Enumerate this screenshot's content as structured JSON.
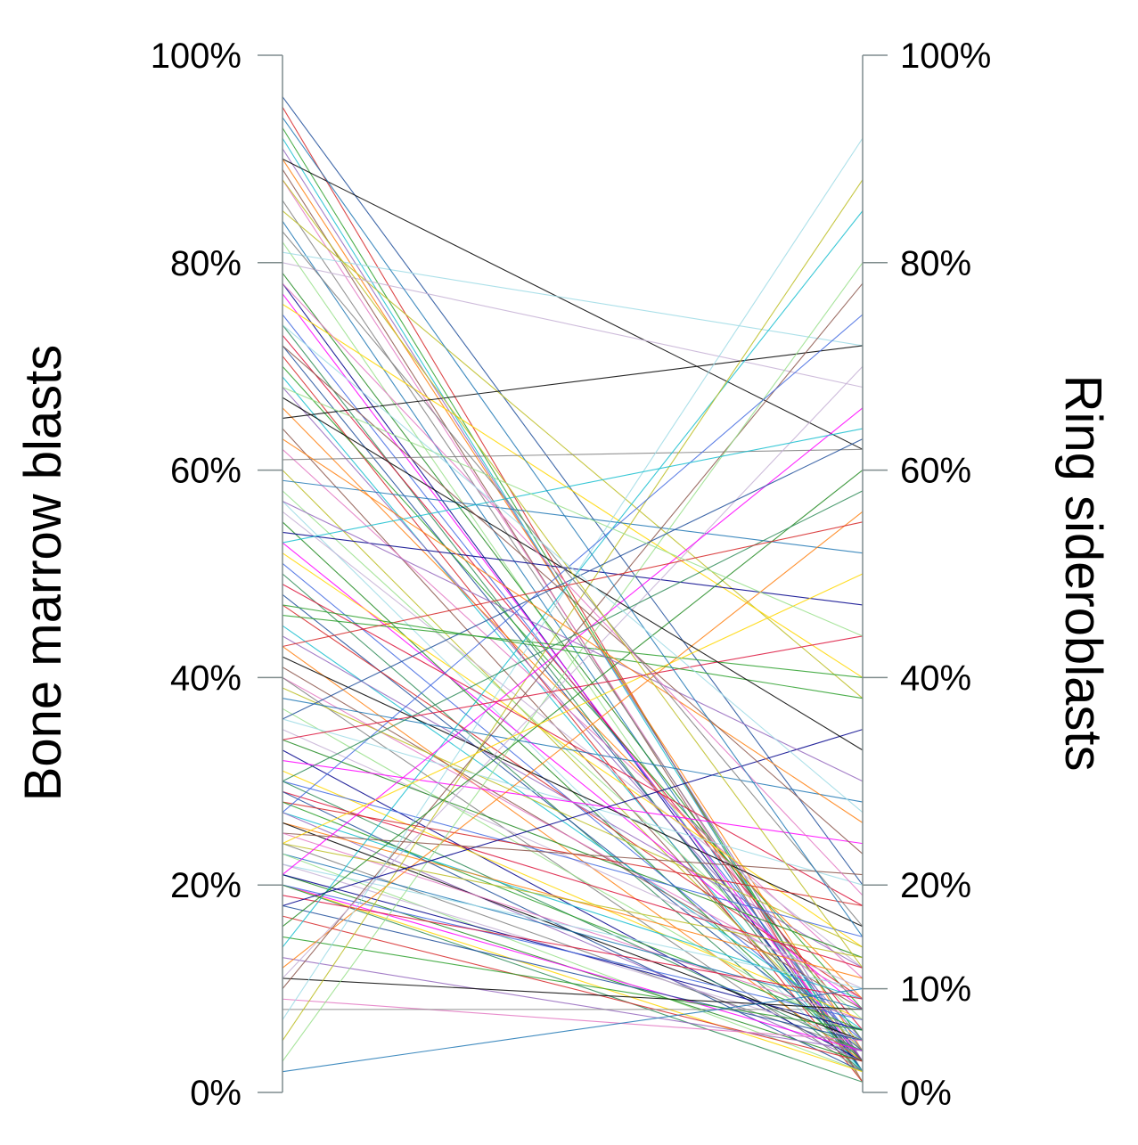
{
  "chart_data": {
    "type": "line",
    "chart_style": "parallel-coordinates",
    "axes": [
      {
        "label": "Bone marrow blasts",
        "side": "left",
        "ylim": [
          0,
          100
        ],
        "ticks": [
          {
            "value": 0,
            "label": "0%"
          },
          {
            "value": 20,
            "label": "20%"
          },
          {
            "value": 40,
            "label": "40%"
          },
          {
            "value": 60,
            "label": "60%"
          },
          {
            "value": 80,
            "label": "80%"
          },
          {
            "value": 100,
            "label": "100%"
          }
        ]
      },
      {
        "label": "Ring sideroblasts",
        "side": "right",
        "ylim": [
          0,
          100
        ],
        "ticks": [
          {
            "value": 0,
            "label": "0%"
          },
          {
            "value": 10,
            "label": "10%"
          },
          {
            "value": 20,
            "label": "20%"
          },
          {
            "value": 40,
            "label": "40%"
          },
          {
            "value": 60,
            "label": "60%"
          },
          {
            "value": 80,
            "label": "80%"
          },
          {
            "value": 100,
            "label": "100%"
          }
        ]
      }
    ],
    "series_colors": [
      "#1f4e9a",
      "#d62728",
      "#2ca02c",
      "#17becf",
      "#9467bd",
      "#ff7f0e",
      "#000000",
      "#8c564b",
      "#e377c2",
      "#7f7f7f",
      "#bcbd22",
      "#1f77b4",
      "#98df8a",
      "#9edae5",
      "#c5b0d5",
      "#228b22",
      "#00008b",
      "#ff00ff",
      "#ffd700",
      "#4169e1",
      "#2e8b57",
      "#dc143c"
    ],
    "series": [
      {
        "values": [
          96,
          20
        ]
      },
      {
        "values": [
          95,
          1
        ]
      },
      {
        "values": [
          93,
          2
        ]
      },
      {
        "values": [
          92,
          2
        ]
      },
      {
        "values": [
          91,
          3
        ]
      },
      {
        "values": [
          90,
          4
        ]
      },
      {
        "values": [
          90,
          62
        ]
      },
      {
        "values": [
          89,
          1
        ]
      },
      {
        "values": [
          88,
          2
        ]
      },
      {
        "values": [
          86,
          3
        ]
      },
      {
        "values": [
          85,
          38
        ]
      },
      {
        "values": [
          84,
          2
        ]
      },
      {
        "values": [
          82,
          1
        ]
      },
      {
        "values": [
          81,
          72
        ]
      },
      {
        "values": [
          80,
          68
        ]
      },
      {
        "values": [
          79,
          5
        ]
      },
      {
        "values": [
          78,
          2
        ]
      },
      {
        "values": [
          77,
          3
        ]
      },
      {
        "values": [
          76,
          40
        ]
      },
      {
        "values": [
          75,
          4
        ]
      },
      {
        "values": [
          74,
          2
        ]
      },
      {
        "values": [
          73,
          6
        ]
      },
      {
        "values": [
          72,
          3
        ]
      },
      {
        "values": [
          71,
          1
        ]
      },
      {
        "values": [
          70,
          8
        ]
      },
      {
        "values": [
          69,
          2
        ]
      },
      {
        "values": [
          68,
          5
        ]
      },
      {
        "values": [
          66,
          9
        ]
      },
      {
        "values": [
          65,
          72
        ]
      },
      {
        "values": [
          64,
          3
        ]
      },
      {
        "values": [
          62,
          11
        ]
      },
      {
        "values": [
          61,
          62
        ]
      },
      {
        "values": [
          60,
          4
        ]
      },
      {
        "values": [
          59,
          52
        ]
      },
      {
        "values": [
          58,
          7
        ]
      },
      {
        "values": [
          57,
          2
        ]
      },
      {
        "values": [
          56,
          12
        ]
      },
      {
        "values": [
          55,
          3
        ]
      },
      {
        "values": [
          54,
          47
        ]
      },
      {
        "values": [
          53,
          8
        ]
      },
      {
        "values": [
          52,
          14
        ]
      },
      {
        "values": [
          51,
          5
        ]
      },
      {
        "values": [
          50,
          2
        ]
      },
      {
        "values": [
          49,
          18
        ]
      },
      {
        "values": [
          48,
          4
        ]
      },
      {
        "values": [
          47,
          9
        ]
      },
      {
        "values": [
          46,
          40
        ]
      },
      {
        "values": [
          45,
          6
        ]
      },
      {
        "values": [
          44,
          12
        ]
      },
      {
        "values": [
          43,
          3
        ]
      },
      {
        "values": [
          42,
          16
        ]
      },
      {
        "values": [
          41,
          8
        ]
      },
      {
        "values": [
          40,
          9
        ]
      },
      {
        "values": [
          40,
          2
        ]
      },
      {
        "values": [
          39,
          14
        ]
      },
      {
        "values": [
          38,
          28
        ]
      },
      {
        "values": [
          37,
          5
        ]
      },
      {
        "values": [
          36,
          20
        ]
      },
      {
        "values": [
          35,
          10
        ]
      },
      {
        "values": [
          34,
          13
        ]
      },
      {
        "values": [
          33,
          3
        ]
      },
      {
        "values": [
          32,
          24
        ]
      },
      {
        "values": [
          31,
          7
        ]
      },
      {
        "values": [
          30,
          15
        ]
      },
      {
        "values": [
          30,
          4
        ]
      },
      {
        "values": [
          29,
          12
        ]
      },
      {
        "values": [
          29,
          2
        ]
      },
      {
        "values": [
          28,
          18
        ]
      },
      {
        "values": [
          28,
          6
        ]
      },
      {
        "values": [
          27,
          9
        ]
      },
      {
        "values": [
          27,
          3
        ]
      },
      {
        "values": [
          26,
          11
        ]
      },
      {
        "values": [
          26,
          5
        ]
      },
      {
        "values": [
          25,
          21
        ]
      },
      {
        "values": [
          25,
          7
        ]
      },
      {
        "values": [
          24,
          4
        ]
      },
      {
        "values": [
          24,
          13
        ]
      },
      {
        "values": [
          23,
          8
        ]
      },
      {
        "values": [
          23,
          2
        ]
      },
      {
        "values": [
          22,
          10
        ]
      },
      {
        "values": [
          22,
          5
        ]
      },
      {
        "values": [
          21,
          3
        ]
      },
      {
        "values": [
          21,
          6
        ]
      },
      {
        "values": [
          20,
          4
        ]
      },
      {
        "values": [
          20,
          2
        ]
      },
      {
        "values": [
          20,
          7
        ]
      },
      {
        "values": [
          20,
          1
        ]
      },
      {
        "values": [
          19,
          9
        ]
      },
      {
        "values": [
          18,
          5
        ]
      },
      {
        "values": [
          17,
          3
        ]
      },
      {
        "values": [
          15,
          6
        ]
      },
      {
        "values": [
          14,
          85
        ]
      },
      {
        "values": [
          13,
          4
        ]
      },
      {
        "values": [
          12,
          56
        ]
      },
      {
        "values": [
          11,
          8
        ]
      },
      {
        "values": [
          10,
          78
        ]
      },
      {
        "values": [
          9,
          5
        ]
      },
      {
        "values": [
          8,
          8
        ]
      },
      {
        "values": [
          5,
          88
        ]
      },
      {
        "values": [
          2,
          10
        ]
      },
      {
        "values": [
          3,
          80
        ]
      },
      {
        "values": [
          7,
          92
        ]
      },
      {
        "values": [
          11,
          70
        ]
      },
      {
        "values": [
          16,
          60
        ]
      },
      {
        "values": [
          18,
          35
        ]
      },
      {
        "values": [
          21,
          66
        ]
      },
      {
        "values": [
          24,
          50
        ]
      },
      {
        "values": [
          27,
          75
        ]
      },
      {
        "values": [
          30,
          58
        ]
      },
      {
        "values": [
          34,
          44
        ]
      },
      {
        "values": [
          36,
          63
        ]
      },
      {
        "values": [
          43,
          55
        ]
      },
      {
        "values": [
          47,
          38
        ]
      },
      {
        "values": [
          53,
          64
        ]
      },
      {
        "values": [
          57,
          30
        ]
      },
      {
        "values": [
          63,
          26
        ]
      },
      {
        "values": [
          67,
          33
        ]
      },
      {
        "values": [
          72,
          23
        ]
      },
      {
        "values": [
          78,
          19
        ]
      },
      {
        "values": [
          83,
          16
        ]
      },
      {
        "values": [
          88,
          12
        ]
      },
      {
        "values": [
          94,
          15
        ]
      },
      {
        "values": [
          68,
          44
        ]
      },
      {
        "values": [
          74,
          27
        ]
      }
    ]
  }
}
